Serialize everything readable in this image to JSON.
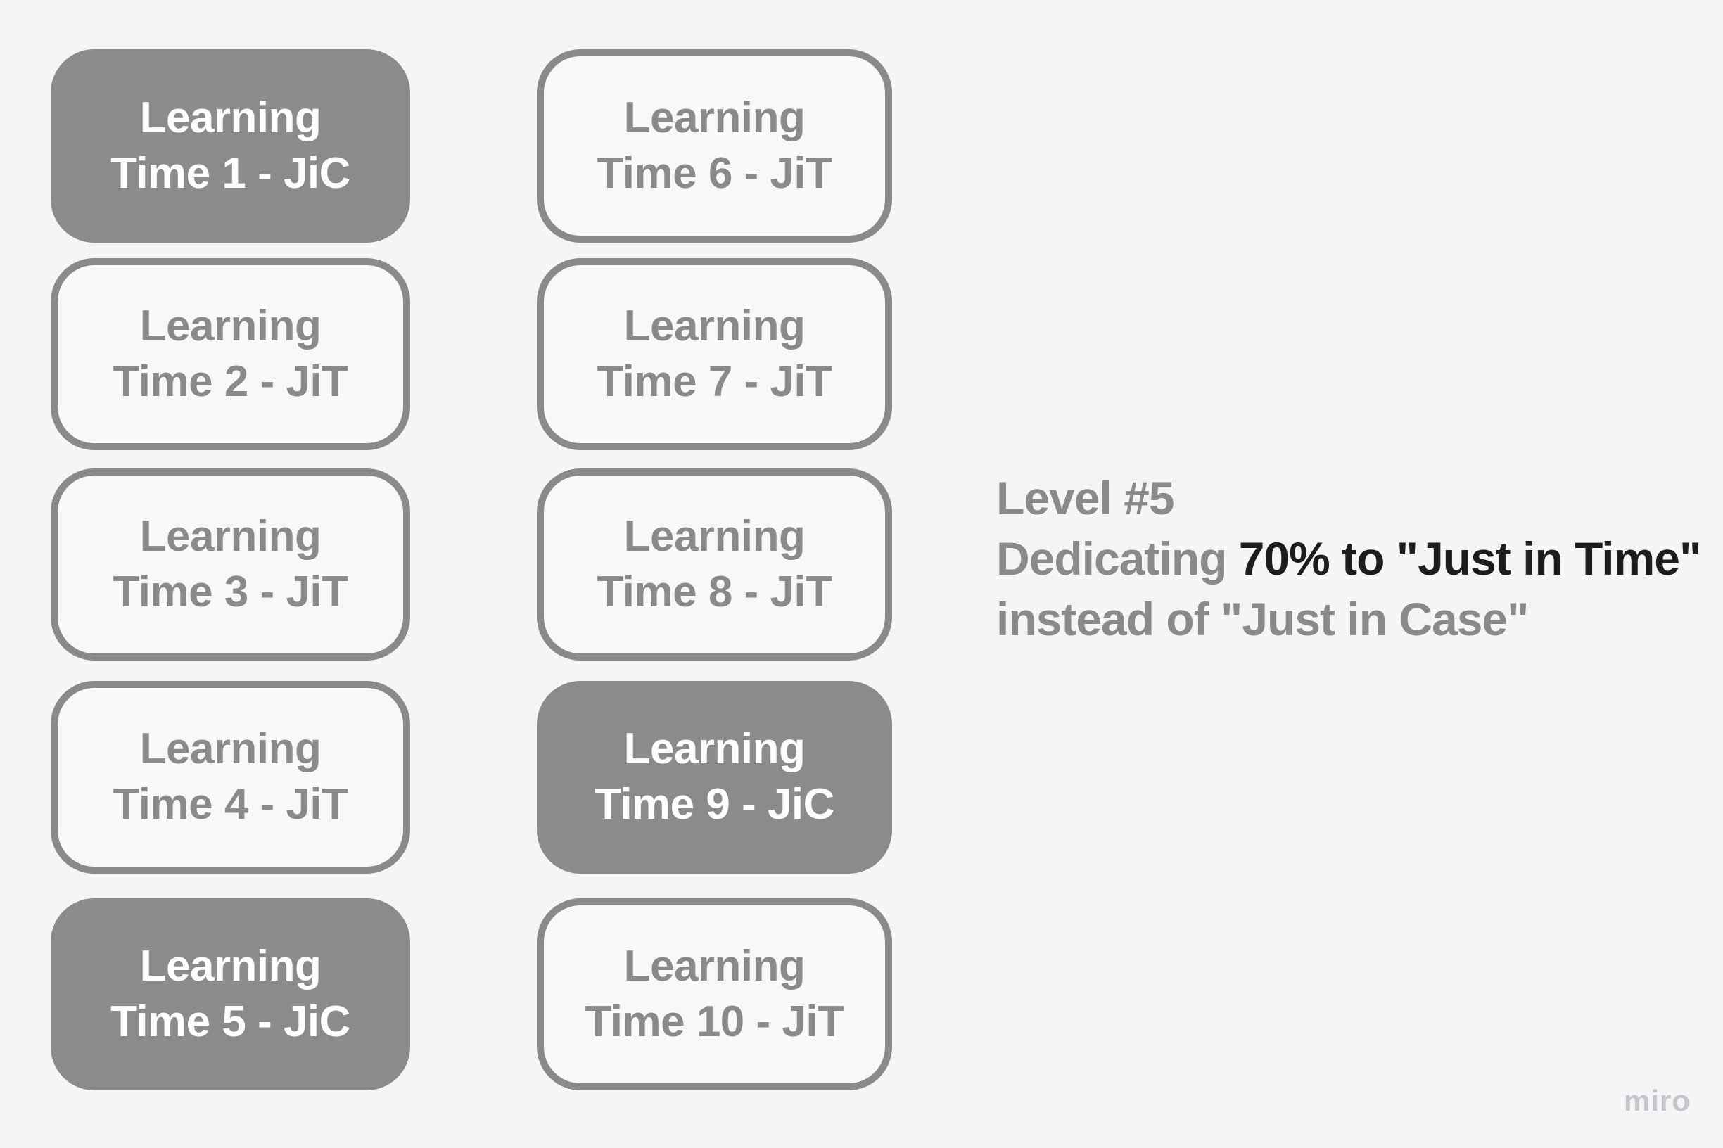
{
  "canvas": {
    "background": "#f5f5f6"
  },
  "colors": {
    "box_fill_highlight": "#8b8b8b",
    "box_border": "#8a8a8a",
    "box_fill_plain": "#f8f8f9",
    "text_gray": "#8a8a8a",
    "text_dark": "#1d1d1d",
    "text_on_highlight": "#fdfdfd",
    "watermark": "#c5c5ce"
  },
  "columns": [
    {
      "boxes": [
        {
          "line1": "Learning",
          "line2": "Time 1 - JiC",
          "variant": "filled"
        },
        {
          "line1": "Learning",
          "line2": "Time 2 - JiT",
          "variant": "outline"
        },
        {
          "line1": "Learning",
          "line2": "Time 3 - JiT",
          "variant": "outline"
        },
        {
          "line1": "Learning",
          "line2": "Time 4 - JiT",
          "variant": "outline"
        },
        {
          "line1": "Learning",
          "line2": "Time 5 - JiC",
          "variant": "filled"
        }
      ]
    },
    {
      "boxes": [
        {
          "line1": "Learning",
          "line2": "Time 6 - JiT",
          "variant": "outline"
        },
        {
          "line1": "Learning",
          "line2": "Time 7 - JiT",
          "variant": "outline"
        },
        {
          "line1": "Learning",
          "line2": "Time 8 - JiT",
          "variant": "outline"
        },
        {
          "line1": "Learning",
          "line2": "Time 9 - JiC",
          "variant": "filled"
        },
        {
          "line1": "Learning",
          "line2": "Time 10 - JiT",
          "variant": "outline"
        }
      ]
    }
  ],
  "annotation": {
    "line1": "Level #5",
    "line2_gray": "Dedicating ",
    "line2_dark": "70% to \"Just in Time\"",
    "line3": "instead of \"Just in Case\""
  },
  "watermark": {
    "label": "miro"
  }
}
